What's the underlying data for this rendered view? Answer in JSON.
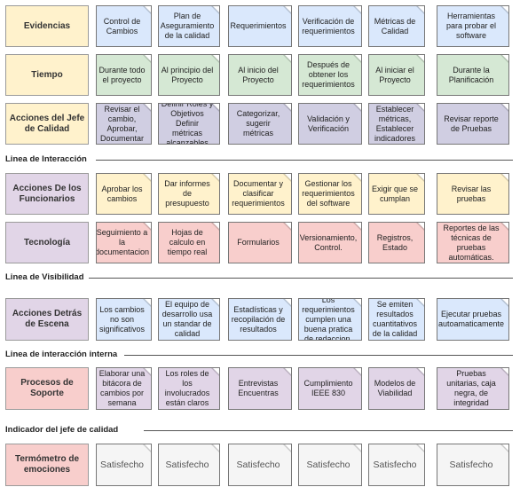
{
  "colors": {
    "evidence": "#dae8fc",
    "time": "#d5e8d4",
    "jefe": "#d0cee2",
    "label_yellow": "#fff2cc",
    "label_purple": "#e1d5e7",
    "label_red": "#f8cecc",
    "func": "#fff2cc",
    "tech": "#f8cecc",
    "behind": "#dae8fc",
    "support": "#e1d5e7",
    "emotion": "#f5f5f5"
  },
  "rows": {
    "evidencias": {
      "label": "Evidencias",
      "cells": [
        "Control de Cambios",
        "Plan de Aseguramiento de la calidad",
        "Requerimientos",
        "Verificación de requerimientos",
        "Métricas de Calidad",
        "Herramientas para probar el software"
      ]
    },
    "tiempo": {
      "label": "Tiempo",
      "cells": [
        "Durante todo el proyecto",
        "Al principio del Proyecto",
        "Al inicio del Proyecto",
        "Después de obtener los requerimientos",
        "Al iniciar el Proyecto",
        "Durante la Planificación"
      ]
    },
    "jefe": {
      "label": "Acciones del Jefe de Calidad",
      "cells": [
        "Revisar el cambio, Aprobar, Documentar",
        "Definir Roles y Objetivos Definir métricas alcanzables",
        "Categorizar, sugerir métricas",
        "Validación y Verificación",
        "Establecer métricas, Establecer indicadores",
        "Revisar reporte de Pruebas"
      ]
    },
    "funcionarios": {
      "label": "Acciones De los Funcionarios",
      "cells": [
        "Aprobar los cambios",
        "Dar informes de presupuesto",
        "Documentar y clasificar requerimientos",
        "Gestionar los requerimientos del software",
        "Exigir que se cumplan",
        "Revisar las pruebas"
      ]
    },
    "tecnologia": {
      "label": "Tecnología",
      "cells": [
        "Seguimiento a la documentacion",
        "Hojas de calculo en tiempo real",
        "Formularios",
        "Versionamiento, Control.",
        "Registros, Estado",
        "Reportes de las técnicas de pruebas automáticas."
      ]
    },
    "detras": {
      "label": "Acciones Detrás de Escena",
      "cells": [
        "Los cambios no son significativos",
        "El equipo de desarrollo usa un standar de calidad",
        "Estadísticas y recopilación de resultados",
        "Los requerimientos cumplen una buena pratica de redaccion.",
        "Se emiten resultados cuantitativos de la calidad",
        "Ejecutar pruebas autoamaticamente"
      ]
    },
    "soporte": {
      "label": "Procesos de Soporte",
      "cells": [
        "Elaborar una bitácora de cambios por semana",
        "Los roles de los involucrados están claros",
        "Entrevistas Encuentras",
        "Cumplimiento IEEE 830",
        "Modelos de Viabilidad",
        "Pruebas unitarias, caja negra, de integridad"
      ]
    },
    "termometro": {
      "label": "Termómetro de emociones",
      "cells": [
        "Satisfecho",
        "Satisfecho",
        "Satisfecho",
        "Satisfecho",
        "Satisfecho",
        "Satisfecho"
      ]
    }
  },
  "separators": {
    "interaccion": "Linea de Interacción",
    "visibilidad": "Linea de Visibilidad",
    "interna": "Linea de interacción interna",
    "indicador": "Indicador del jefe de calidad"
  }
}
